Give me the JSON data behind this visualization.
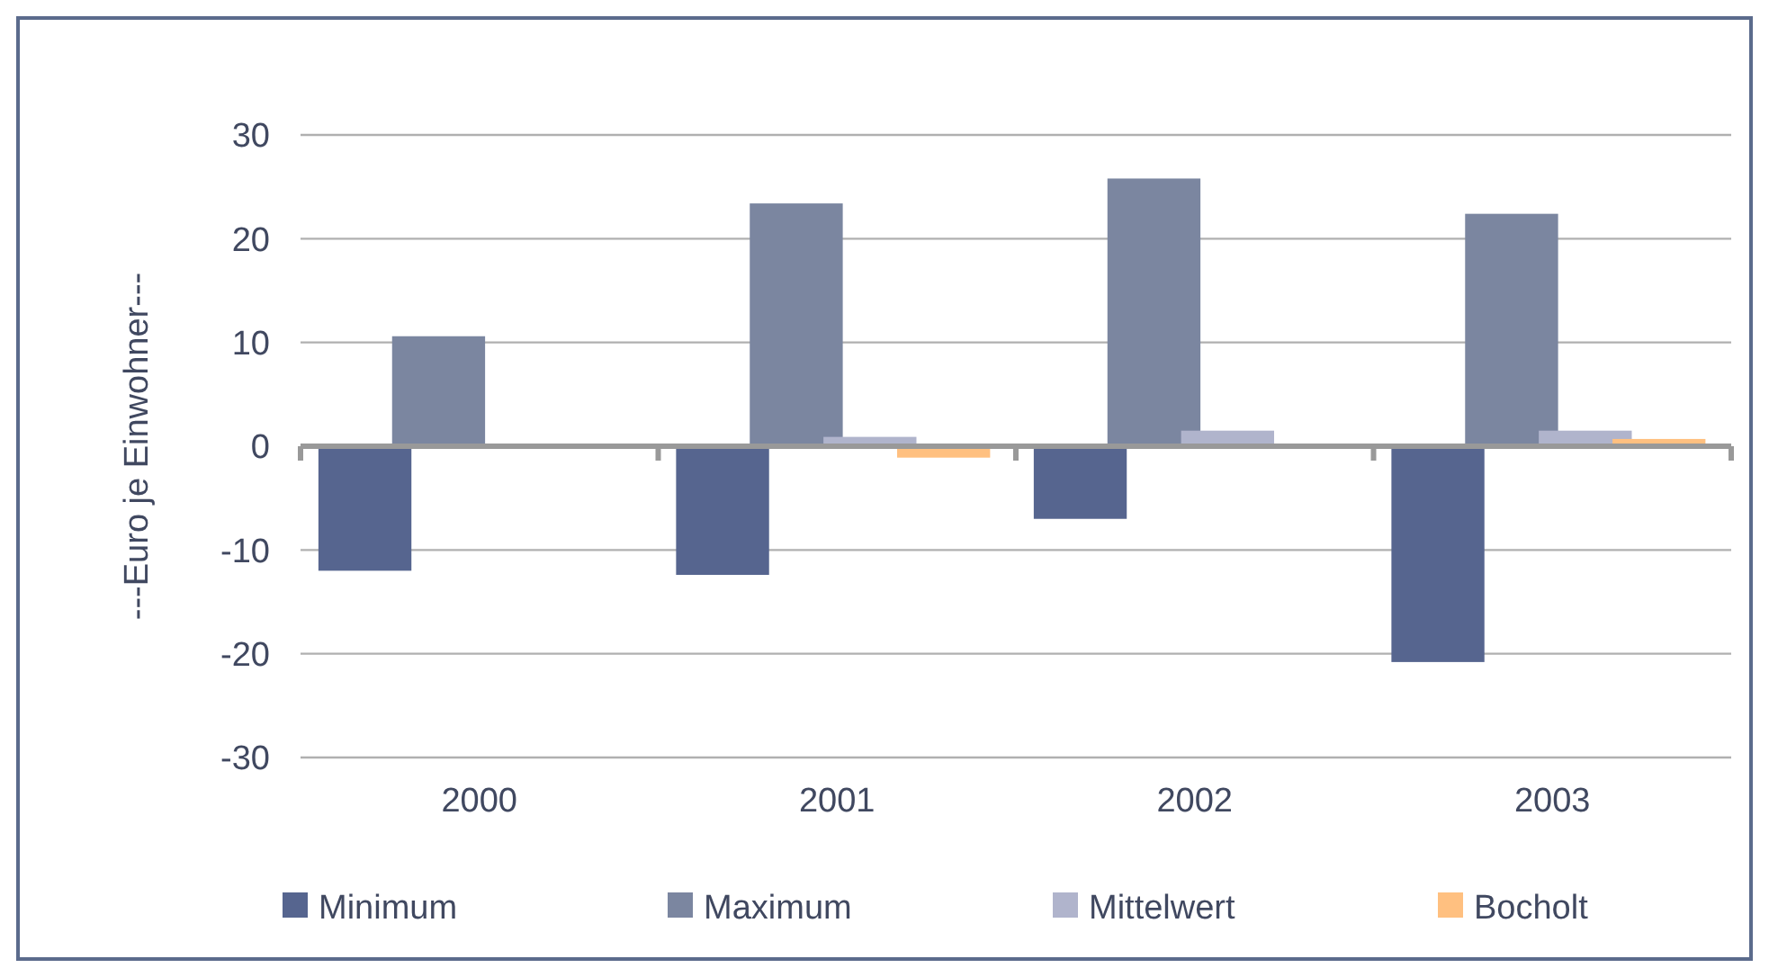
{
  "chart_data": {
    "type": "bar",
    "ylabel": "---Euro je Einwohner---",
    "categories": [
      "2000",
      "2001",
      "2002",
      "2003"
    ],
    "series": [
      {
        "name": "Minimum",
        "color": "#56658f",
        "values": [
          -12.0,
          -12.4,
          -7.0,
          -20.8
        ]
      },
      {
        "name": "Maximum",
        "color": "#7b86a0",
        "values": [
          10.6,
          23.4,
          25.8,
          22.4
        ]
      },
      {
        "name": "Mittelwert",
        "color": "#b0b4cc",
        "values": [
          null,
          0.9,
          1.5,
          1.5
        ]
      },
      {
        "name": "Bocholt",
        "color": "#ffc080",
        "values": [
          null,
          -1.1,
          null,
          0.7
        ]
      }
    ],
    "ylim": [
      -30,
      30
    ],
    "yticks": [
      -30,
      -20,
      -10,
      0,
      10,
      20,
      30
    ],
    "grid": "y",
    "legend": "bottom"
  }
}
